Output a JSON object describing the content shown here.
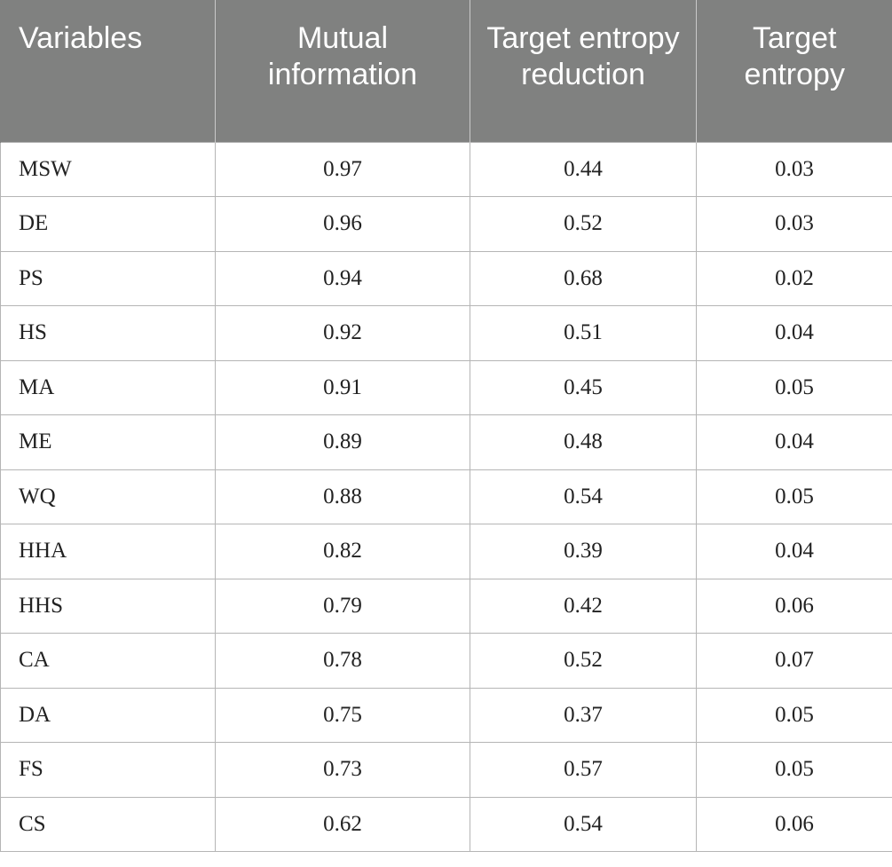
{
  "table": {
    "headers": [
      "Variables",
      "Mutual information",
      "Target entropy reduction",
      "Target entropy"
    ],
    "rows": [
      [
        "MSW",
        "0.97",
        "0.44",
        "0.03"
      ],
      [
        "DE",
        "0.96",
        "0.52",
        "0.03"
      ],
      [
        "PS",
        "0.94",
        "0.68",
        "0.02"
      ],
      [
        "HS",
        "0.92",
        "0.51",
        "0.04"
      ],
      [
        "MA",
        "0.91",
        "0.45",
        "0.05"
      ],
      [
        "ME",
        "0.89",
        "0.48",
        "0.04"
      ],
      [
        "WQ",
        "0.88",
        "0.54",
        "0.05"
      ],
      [
        "HHA",
        "0.82",
        "0.39",
        "0.04"
      ],
      [
        "HHS",
        "0.79",
        "0.42",
        "0.06"
      ],
      [
        "CA",
        "0.78",
        "0.52",
        "0.07"
      ],
      [
        "DA",
        "0.75",
        "0.37",
        "0.05"
      ],
      [
        "FS",
        "0.73",
        "0.57",
        "0.05"
      ],
      [
        "CS",
        "0.62",
        "0.54",
        "0.06"
      ]
    ]
  }
}
